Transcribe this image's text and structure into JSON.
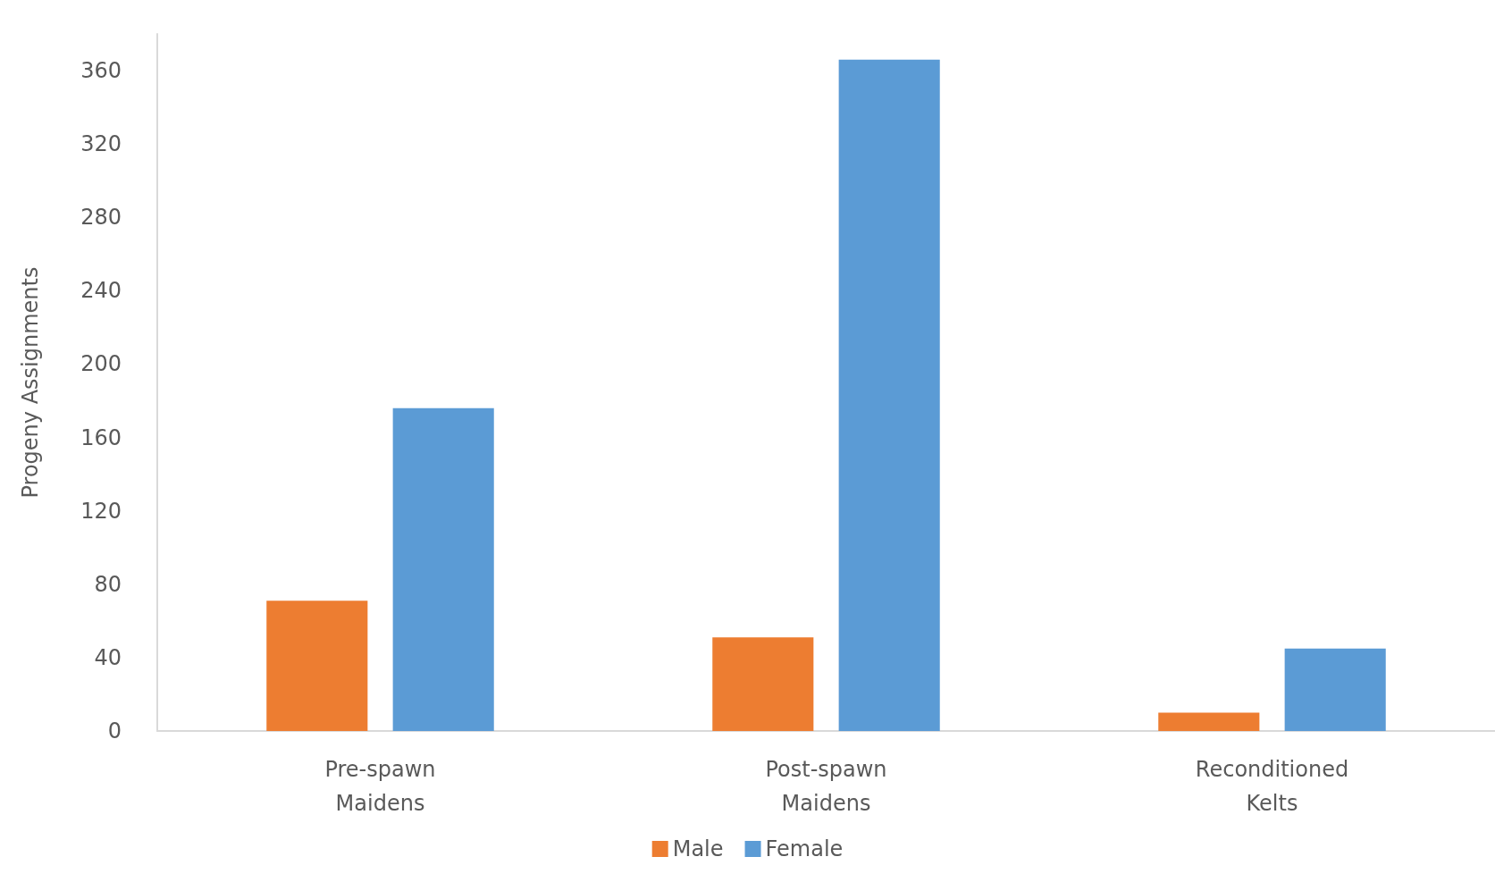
{
  "chart_data": {
    "type": "bar",
    "ylabel": "Progeny Assignments",
    "categories": [
      "Pre-spawn\nMaidens",
      "Post-spawn\nMaidens",
      "Reconditioned\nKelts"
    ],
    "series": [
      {
        "name": "Male",
        "color": "#ed7d31",
        "values": [
          71,
          51,
          10
        ]
      },
      {
        "name": "Female",
        "color": "#5b9bd5",
        "values": [
          176,
          366,
          45
        ]
      }
    ],
    "ylim": [
      0,
      380
    ],
    "yticks": [
      0,
      40,
      80,
      120,
      160,
      200,
      240,
      280,
      320,
      360
    ],
    "grid": false,
    "legend": "bottom"
  }
}
